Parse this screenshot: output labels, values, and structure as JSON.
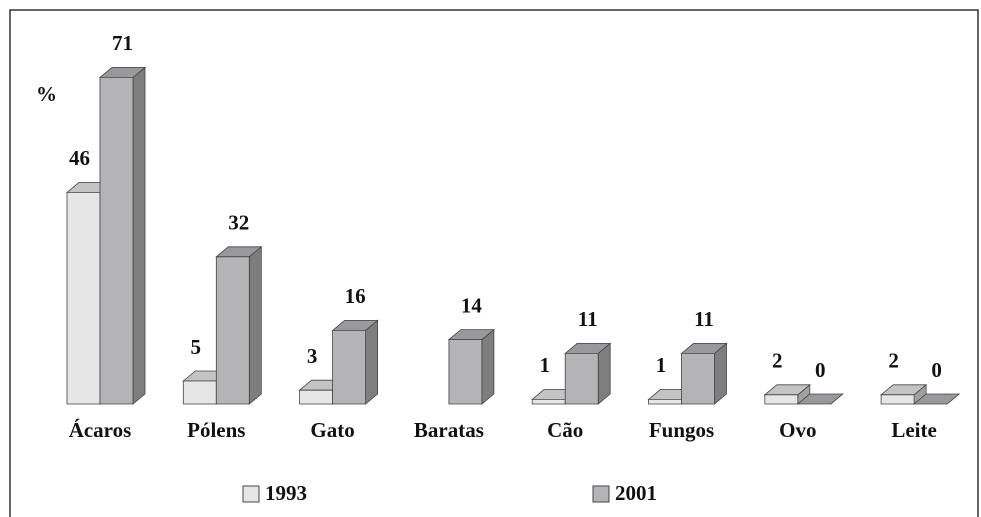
{
  "chart_data": {
    "type": "bar3d",
    "y_label": "%",
    "categories": [
      "Ácaros",
      "Pólens",
      "Gato",
      "Baratas",
      "Cão",
      "Fungos",
      "Ovo",
      "Leite"
    ],
    "series": [
      {
        "name": "1993",
        "color": "#e6e6e6",
        "values": [
          46,
          5,
          3,
          null,
          1,
          1,
          2,
          2
        ]
      },
      {
        "name": "2001",
        "color": "#b4b4b6",
        "values": [
          71,
          32,
          16,
          14,
          11,
          11,
          0,
          0
        ]
      }
    ]
  }
}
